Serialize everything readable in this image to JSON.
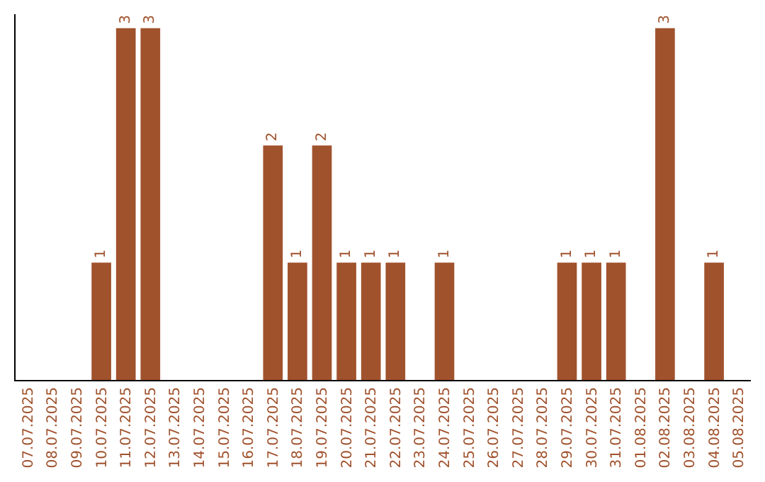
{
  "chart_data": {
    "type": "bar",
    "categories": [
      "07.07.2025",
      "08.07.2025",
      "09.07.2025",
      "10.07.2025",
      "11.07.2025",
      "12.07.2025",
      "13.07.2025",
      "14.07.2025",
      "15.07.2025",
      "16.07.2025",
      "17.07.2025",
      "18.07.2025",
      "19.07.2025",
      "20.07.2025",
      "21.07.2025",
      "22.07.2025",
      "23.07.2025",
      "24.07.2025",
      "25.07.2025",
      "26.07.2025",
      "27.07.2025",
      "28.07.2025",
      "29.07.2025",
      "30.07.2025",
      "31.07.2025",
      "01.08.2025",
      "02.08.2025",
      "03.08.2025",
      "04.08.2025",
      "05.08.2025"
    ],
    "values": [
      0,
      0,
      0,
      1,
      3,
      3,
      0,
      0,
      0,
      0,
      2,
      1,
      2,
      1,
      1,
      1,
      0,
      1,
      0,
      0,
      0,
      0,
      1,
      1,
      1,
      0,
      3,
      0,
      1,
      0
    ],
    "value_labels": [
      null,
      null,
      null,
      "1",
      "3",
      "3",
      null,
      null,
      null,
      null,
      "2",
      "1",
      "2",
      "1",
      "1",
      "1",
      null,
      "1",
      null,
      null,
      null,
      null,
      "1",
      "1",
      "1",
      null,
      "3",
      null,
      "1",
      null
    ],
    "color": "#a0522d",
    "legend": false
  }
}
